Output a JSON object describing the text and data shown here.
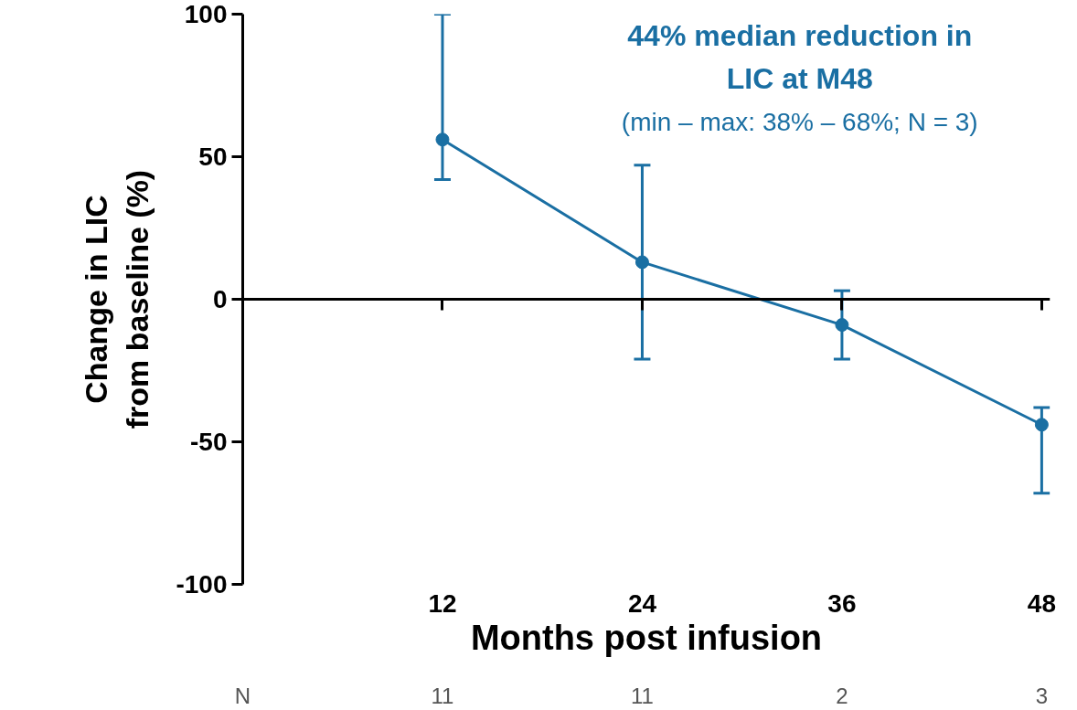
{
  "chart_data": {
    "type": "line",
    "title": "44% median reduction in LIC at M48",
    "subtitle": "(min – max: 38% – 68%; N = 3)",
    "xlabel": "Months post infusion",
    "ylabel": "Change in LIC from baseline (%)",
    "x": [
      12,
      24,
      36,
      48
    ],
    "series": [
      {
        "color": "#1a6fa3",
        "values": [
          56,
          13,
          -9,
          -44
        ],
        "errors": [
          [
            42,
            100
          ],
          [
            -21,
            47
          ],
          [
            -21,
            3
          ],
          [
            -68,
            -38
          ]
        ]
      }
    ],
    "xlim": [
      0,
      48.5
    ],
    "xticks": [
      12,
      24,
      36,
      48
    ],
    "ylim": [
      -100,
      100
    ],
    "yticks": [
      -100,
      -50,
      0,
      50,
      100
    ],
    "marker": "circle",
    "line_style": "solid",
    "annotations": [
      "N",
      "11",
      "11",
      "2",
      "3"
    ]
  }
}
